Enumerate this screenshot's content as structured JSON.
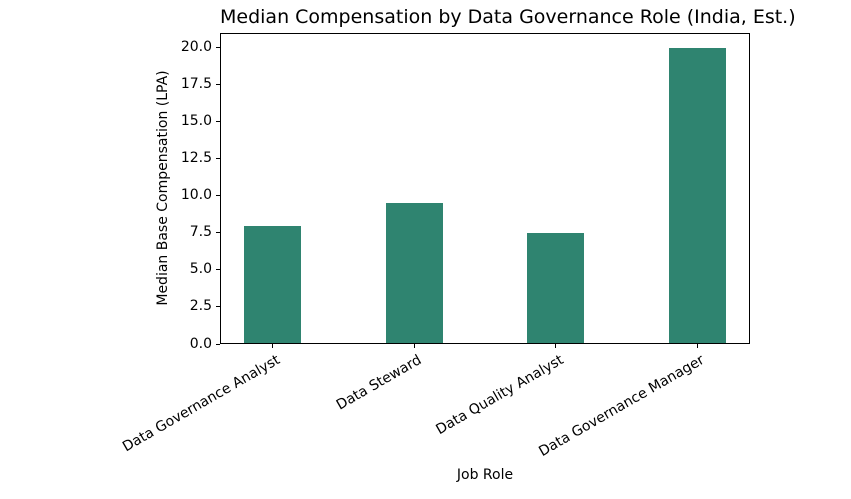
{
  "chart_data": {
    "type": "bar",
    "title": "Median Compensation by Data Governance Role (India, Est.)",
    "categories": [
      "Data Governance Analyst",
      "Data Steward",
      "Data Quality Analyst",
      "Data Governance Manager"
    ],
    "values": [
      8.0,
      9.5,
      7.5,
      20.0
    ],
    "xlabel": "Job Role",
    "ylabel": "Median Base Compensation (LPA)",
    "ylim": [
      0,
      21
    ],
    "yticks": [
      0.0,
      2.5,
      5.0,
      7.5,
      10.0,
      12.5,
      15.0,
      17.5,
      20.0
    ],
    "ytick_decimals": 1,
    "x_tick_rotation_deg": 30,
    "grid": false,
    "legend": false,
    "bar_color": "#2f8470",
    "axis_color": "#000000",
    "text_color": "#000000",
    "background_color": "#ffffff"
  }
}
